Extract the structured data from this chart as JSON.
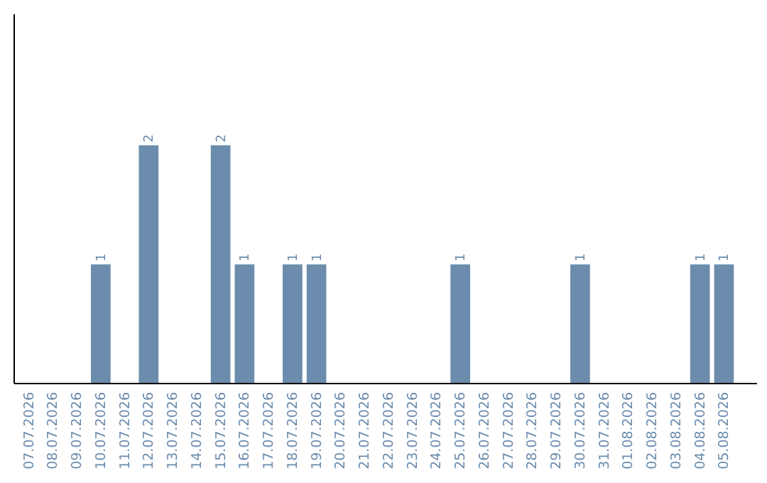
{
  "chart_data": {
    "type": "bar",
    "categories": [
      "07.07.2026",
      "08.07.2026",
      "09.07.2026",
      "10.07.2026",
      "11.07.2026",
      "12.07.2026",
      "13.07.2026",
      "14.07.2026",
      "15.07.2026",
      "16.07.2026",
      "17.07.2026",
      "18.07.2026",
      "19.07.2026",
      "20.07.2026",
      "21.07.2026",
      "22.07.2026",
      "23.07.2026",
      "24.07.2026",
      "25.07.2026",
      "26.07.2026",
      "27.07.2026",
      "28.07.2026",
      "29.07.2026",
      "30.07.2026",
      "31.07.2026",
      "01.08.2026",
      "02.08.2026",
      "03.08.2026",
      "04.08.2026",
      "05.08.2026"
    ],
    "values": [
      0,
      0,
      0,
      1,
      0,
      2,
      0,
      0,
      2,
      1,
      0,
      1,
      1,
      0,
      0,
      0,
      0,
      0,
      1,
      0,
      0,
      0,
      0,
      1,
      0,
      0,
      0,
      0,
      1,
      1
    ],
    "value_labels": [
      null,
      null,
      null,
      "1",
      null,
      "2",
      null,
      null,
      "2",
      "1",
      null,
      "1",
      "1",
      null,
      null,
      null,
      null,
      null,
      "1",
      null,
      null,
      null,
      null,
      "1",
      null,
      null,
      null,
      null,
      "1",
      "1"
    ],
    "color": "#6b8cad",
    "ylim": [
      0,
      3.1
    ],
    "tick_labels": "x"
  }
}
